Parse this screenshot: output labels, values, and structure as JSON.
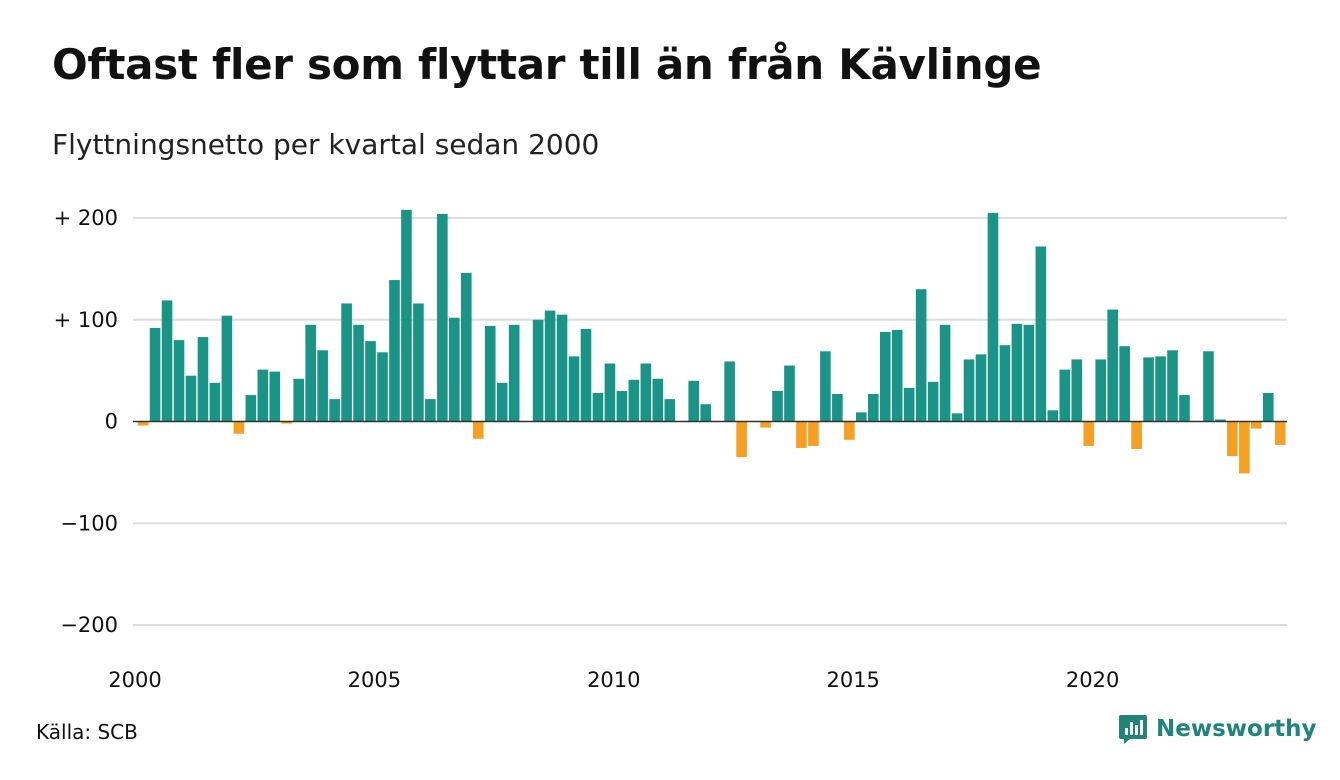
{
  "header": {
    "title": "Oftast fler som flyttar till än från Kävlinge",
    "subtitle": "Flyttningsnetto per kvartal sedan 2000"
  },
  "footer": {
    "source": "Källa: SCB",
    "brand": "Newsworthy",
    "brand_icon": "newsworthy-logo-icon"
  },
  "colors": {
    "positive": "#1a9486",
    "negative": "#f5a023",
    "grid": "#dddddd",
    "brand": "#20847a"
  },
  "chart_data": {
    "type": "bar",
    "title": "Oftast fler som flyttar till än från Kävlinge",
    "subtitle": "Flyttningsnetto per kvartal sedan 2000",
    "xlabel": "",
    "ylabel": "",
    "ylim": [
      -200,
      200
    ],
    "yticks": [
      200,
      100,
      0,
      -100,
      -200
    ],
    "ytick_labels": [
      "+ 200",
      "+ 100",
      "0",
      "−100",
      "−200"
    ],
    "xtick_labels": [
      "2000",
      "2005",
      "2010",
      "2015",
      "2020"
    ],
    "xtick_quarter_index": [
      0,
      20,
      40,
      60,
      80
    ],
    "grid": true,
    "start": "2000 Q1",
    "frequency": "quarter",
    "values": [
      -4,
      92,
      119,
      80,
      45,
      83,
      38,
      104,
      -12,
      26,
      51,
      49,
      -2,
      42,
      95,
      70,
      22,
      116,
      95,
      79,
      68,
      139,
      208,
      116,
      22,
      204,
      102,
      146,
      -17,
      94,
      38,
      95,
      0,
      100,
      109,
      105,
      64,
      91,
      28,
      57,
      30,
      41,
      57,
      42,
      22,
      0,
      40,
      17,
      0,
      59,
      -35,
      0,
      -6,
      30,
      55,
      -26,
      -24,
      69,
      27,
      -18,
      9,
      27,
      88,
      90,
      33,
      130,
      39,
      95,
      8,
      61,
      66,
      205,
      75,
      96,
      95,
      172,
      11,
      51,
      61,
      -24,
      61,
      110,
      74,
      -27,
      63,
      64,
      70,
      26,
      0,
      69,
      2,
      -34,
      -51,
      -7,
      28,
      -23
    ]
  }
}
